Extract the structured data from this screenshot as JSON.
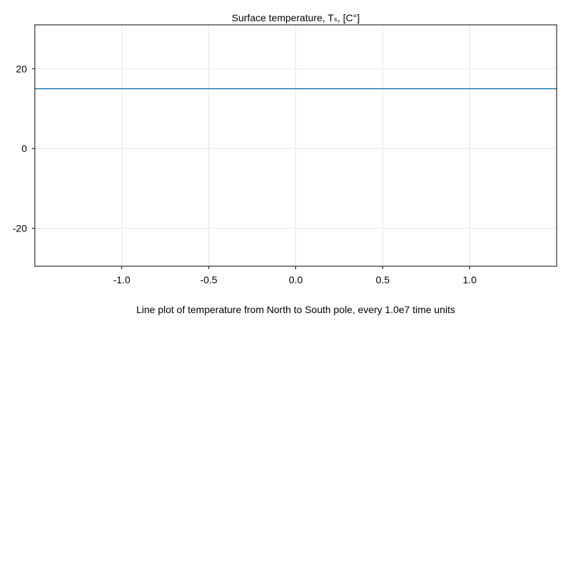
{
  "chart_data": {
    "type": "line",
    "title": "Surface temperature, Tₛ, [C°]",
    "xlabel": "Line plot of temperature from North to South pole, every 1.0e7 time units",
    "ylabel": "",
    "xlim": [
      -1.5,
      1.5
    ],
    "ylim": [
      -29.5,
      31
    ],
    "xticks": [
      -1.0,
      -0.5,
      0.0,
      0.5,
      1.0
    ],
    "xtick_labels": [
      "-1.0",
      "-0.5",
      "0.0",
      "0.5",
      "1.0"
    ],
    "yticks": [
      -20,
      0,
      20
    ],
    "ytick_labels": [
      "-20",
      "0",
      "20"
    ],
    "grid": true,
    "series": [
      {
        "color": "#1f77b4",
        "x": [
          -1.5,
          1.5
        ],
        "y": [
          15,
          15
        ]
      }
    ]
  }
}
